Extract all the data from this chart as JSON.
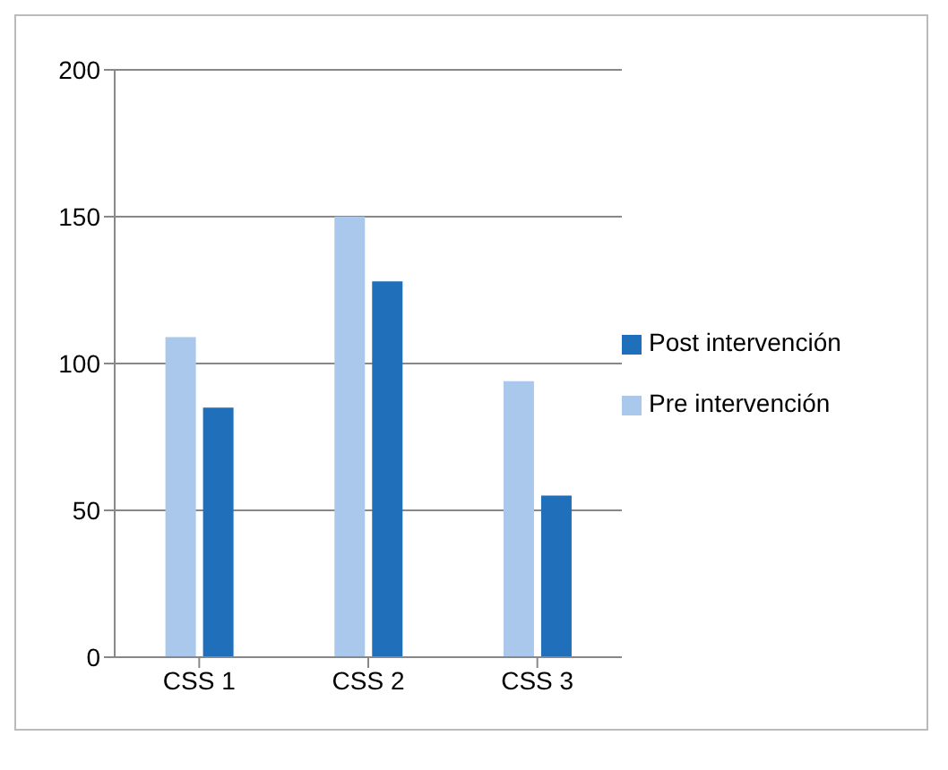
{
  "chart_data": {
    "type": "bar",
    "categories": [
      "CSS 1",
      "CSS 2",
      "CSS 3"
    ],
    "series": [
      {
        "name": "Pre intervención",
        "color": "#a9c8ec",
        "values": [
          109,
          150,
          94
        ]
      },
      {
        "name": "Post intervención",
        "color": "#1f6fba",
        "values": [
          85,
          128,
          55
        ]
      }
    ],
    "ylim": [
      0,
      200
    ],
    "yticks": [
      0,
      50,
      100,
      150,
      200
    ],
    "grid": "y",
    "legend": "right"
  }
}
